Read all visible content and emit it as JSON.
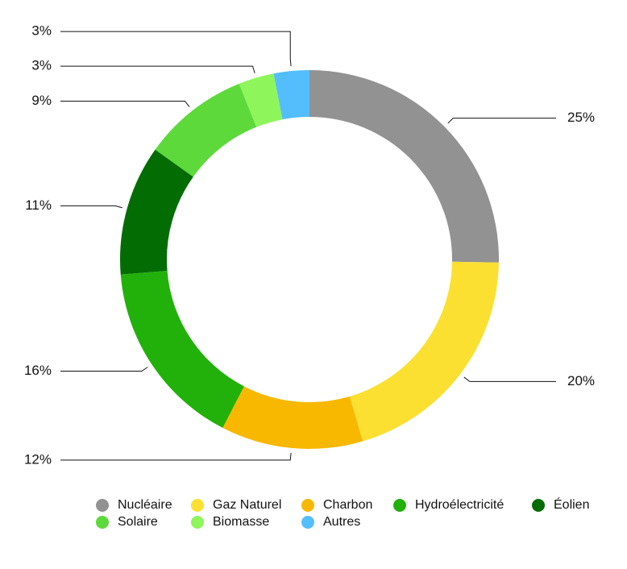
{
  "chart_data": {
    "type": "donut",
    "categories": [
      "Nucléaire",
      "Gaz Naturel",
      "Charbon",
      "Hydroélectricité",
      "Éolien",
      "Solaire",
      "Biomasse",
      "Autres"
    ],
    "values": [
      25,
      20,
      12,
      16,
      11,
      9,
      3,
      3
    ],
    "value_labels": [
      "25%",
      "20%",
      "12%",
      "16%",
      "11%",
      "9%",
      "3%",
      "3%"
    ],
    "colors": [
      "#929292",
      "#fbe032",
      "#f8b800",
      "#22b10a",
      "#036d04",
      "#5dd93c",
      "#8ef55a",
      "#54befc"
    ]
  }
}
